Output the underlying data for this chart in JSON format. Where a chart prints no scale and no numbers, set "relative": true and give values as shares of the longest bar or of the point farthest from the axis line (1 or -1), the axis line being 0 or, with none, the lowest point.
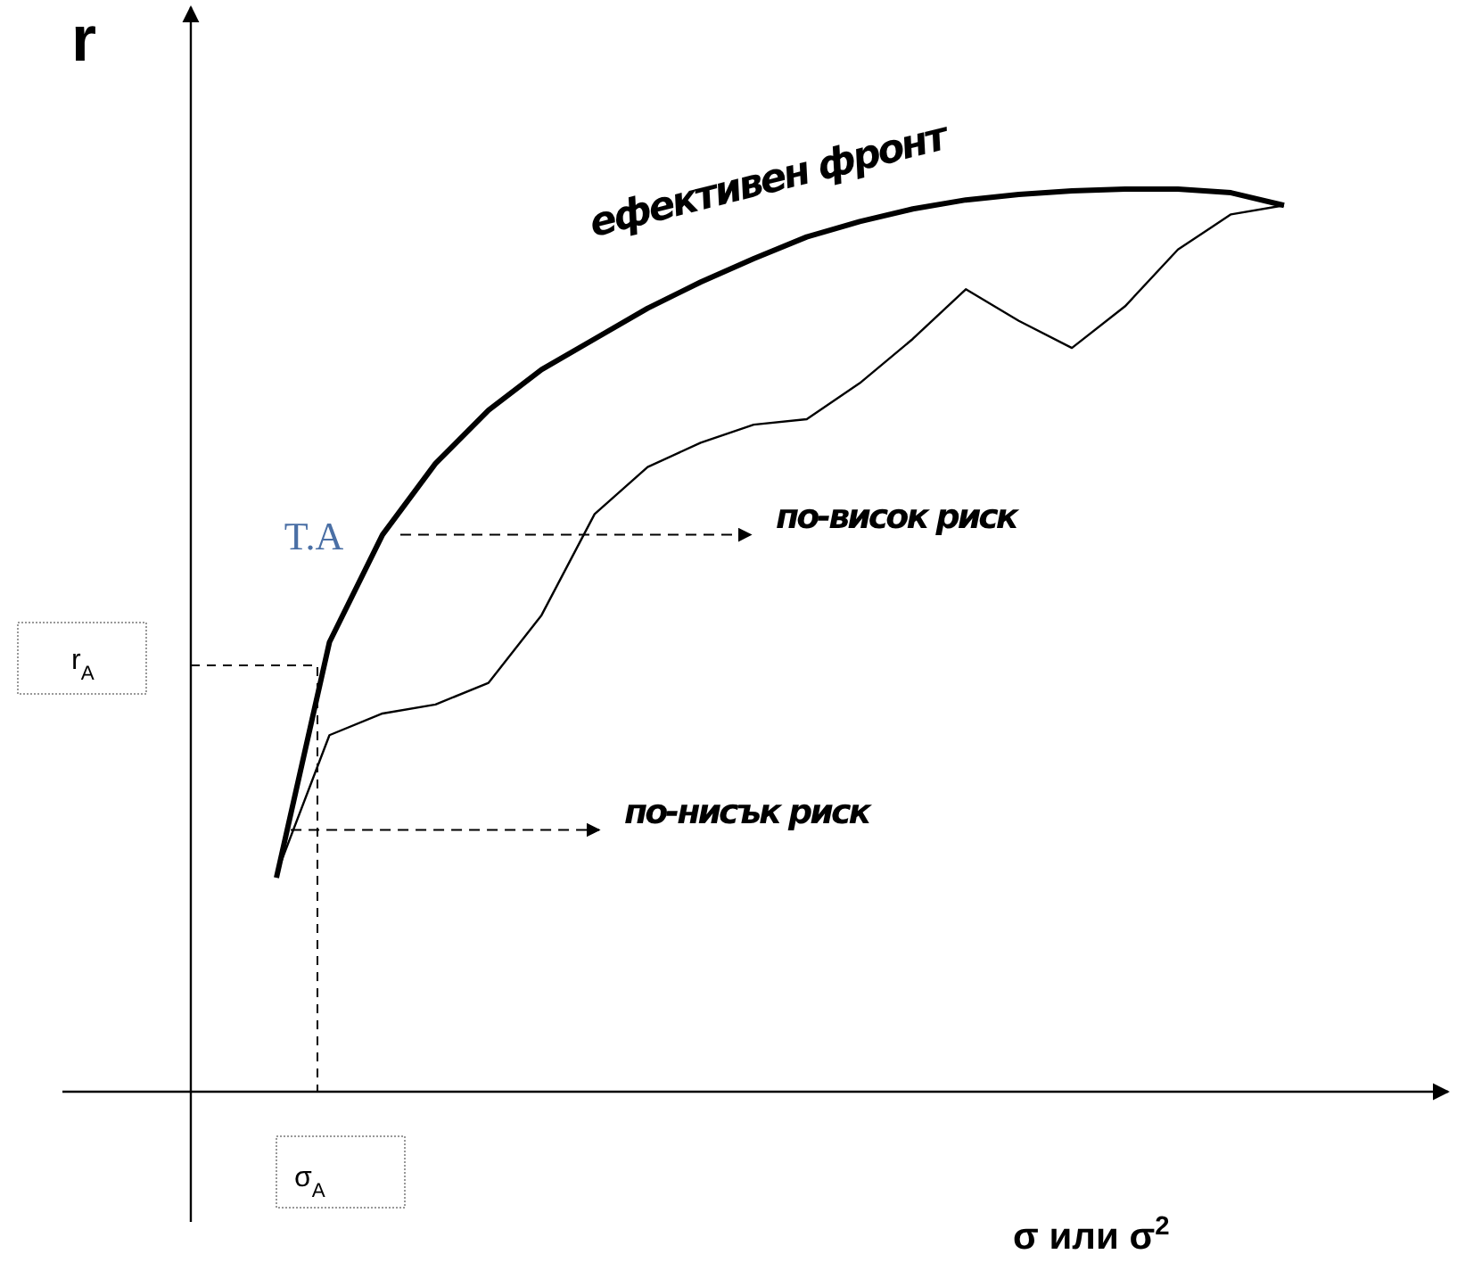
{
  "chart_data": {
    "type": "line",
    "relative": true,
    "xlabel": "σ или σ$^{2}$",
    "ylabel": "r",
    "categories": [
      null,
      null,
      null,
      null,
      null,
      null,
      null,
      null,
      null,
      null,
      null,
      null,
      null,
      null,
      null,
      null,
      null,
      null,
      null,
      null
    ],
    "series": [
      {
        "color": "#000000",
        "values": [
          0.237,
          0.498,
          0.617,
          0.696,
          0.755,
          0.8,
          0.834,
          0.868,
          0.897,
          0.923,
          0.947,
          0.964,
          0.978,
          0.988,
          0.994,
          0.998,
          1,
          1,
          0.996,
          0.982
        ]
      },
      {
        "color": "#000000",
        "values": [
          0.241,
          0.395,
          0.419,
          0.429,
          0.453,
          0.528,
          0.64,
          0.692,
          0.719,
          0.739,
          0.745,
          0.785,
          0.834,
          0.889,
          0.854,
          0.824,
          0.87,
          0.933,
          0.972,
          0.982
        ]
      }
    ],
    "annotations": [
      "ефективен фронт",
      "T.A",
      "по-висок риск",
      "по-нисък риск",
      "σ$_{A}$",
      "r$_{A}$"
    ]
  }
}
